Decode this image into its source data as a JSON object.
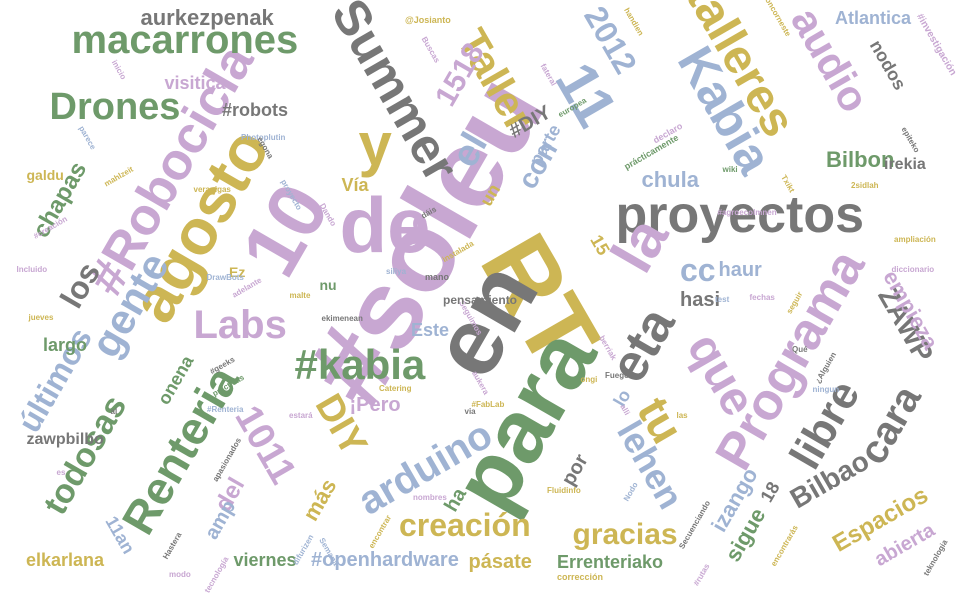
{
  "palette": {
    "green": "#6e9a6a",
    "blue": "#9fb3d3",
    "purple": "#c8a7d2",
    "gold": "#cdb654",
    "gray": "#777777"
  },
  "words": [
    {
      "text": "#soleu",
      "color": "purple"
    },
    {
      "text": "RT",
      "color": "gold"
    },
    {
      "text": "en",
      "color": "gray"
    },
    {
      "text": "para",
      "color": "green"
    },
    {
      "text": "10",
      "color": "purple"
    },
    {
      "text": "de",
      "color": "purple"
    },
    {
      "text": "agosto",
      "color": "gold"
    },
    {
      "text": "#Robocicla",
      "color": "purple"
    },
    {
      "text": "y",
      "color": "gold"
    },
    {
      "text": "Summer",
      "color": "gray"
    },
    {
      "text": "11",
      "color": "blue"
    },
    {
      "text": "Kabia",
      "color": "blue"
    },
    {
      "text": "talleres",
      "color": "gold"
    },
    {
      "text": "proyectos",
      "color": "gray"
    },
    {
      "text": "Programa",
      "color": "purple"
    },
    {
      "text": "la",
      "color": "purple"
    },
    {
      "text": "macarrones",
      "color": "green"
    },
    {
      "text": "Drones",
      "color": "green"
    },
    {
      "text": "gente",
      "color": "blue"
    },
    {
      "text": "Labs",
      "color": "purple"
    },
    {
      "text": "#kabia",
      "color": "green"
    },
    {
      "text": "eta",
      "color": "gray"
    },
    {
      "text": "que",
      "color": "purple"
    },
    {
      "text": "tu",
      "color": "gold"
    },
    {
      "text": "arduino",
      "color": "blue"
    },
    {
      "text": "Renteria",
      "color": "green"
    },
    {
      "text": "DIY",
      "color": "gold"
    },
    {
      "text": "1011",
      "color": "purple"
    },
    {
      "text": "libre",
      "color": "gray"
    },
    {
      "text": "cara",
      "color": "gray"
    },
    {
      "text": "lehen",
      "color": "blue"
    },
    {
      "text": "todosas",
      "color": "green"
    },
    {
      "text": "creación",
      "color": "gold"
    },
    {
      "text": "gracias",
      "color": "gold"
    },
    {
      "text": "Bilbao",
      "color": "gray"
    },
    {
      "text": "audio",
      "color": "purple"
    },
    {
      "text": "Taller",
      "color": "gold"
    },
    {
      "text": "2012",
      "color": "blue"
    },
    {
      "text": "1518",
      "color": "purple"
    },
    {
      "text": "el",
      "color": "blue"
    },
    {
      "text": "con",
      "color": "blue"
    },
    {
      "text": "los",
      "color": "gray"
    },
    {
      "text": "últimos",
      "color": "blue"
    },
    {
      "text": "cc",
      "color": "blue"
    },
    {
      "text": "aurkezpenak",
      "color": "gray"
    },
    {
      "text": "chapas",
      "color": "green"
    },
    {
      "text": "Bilbon",
      "color": "green"
    },
    {
      "text": "chula",
      "color": "blue"
    },
    {
      "text": "haur",
      "color": "blue"
    },
    {
      "text": "hasi",
      "color": "gray"
    },
    {
      "text": "ZAWP",
      "color": "gray"
    },
    {
      "text": "empieza",
      "color": "purple"
    },
    {
      "text": "Espacios",
      "color": "gold"
    },
    {
      "text": "abierta",
      "color": "purple"
    },
    {
      "text": "izango",
      "color": "blue"
    },
    {
      "text": "sigue",
      "color": "green"
    },
    {
      "text": "del",
      "color": "purple"
    },
    {
      "text": "amp",
      "color": "blue"
    },
    {
      "text": "más",
      "color": "gold"
    },
    {
      "text": "onena",
      "color": "green"
    },
    {
      "text": "¡Pero",
      "color": "purple"
    },
    {
      "text": "#openhardware",
      "color": "blue"
    },
    {
      "text": "pásate",
      "color": "gold"
    },
    {
      "text": "Errenteriako",
      "color": "green"
    },
    {
      "text": "viernes",
      "color": "green"
    },
    {
      "text": "elkarlana",
      "color": "gold"
    },
    {
      "text": "zawpbilbo",
      "color": "gray"
    },
    {
      "text": "11an",
      "color": "blue"
    },
    {
      "text": "por",
      "color": "gray"
    },
    {
      "text": "ha",
      "color": "green"
    },
    {
      "text": "18",
      "color": "gray"
    },
    {
      "text": "lo",
      "color": "blue"
    },
    {
      "text": "Este",
      "color": "blue"
    },
    {
      "text": "largo",
      "color": "green"
    },
    {
      "text": "Vía",
      "color": "gold"
    },
    {
      "text": "un",
      "color": "gold"
    },
    {
      "text": "parte",
      "color": "blue"
    },
    {
      "text": "#DIY",
      "color": "gray"
    },
    {
      "text": "#robots",
      "color": "gray"
    },
    {
      "text": "visitica",
      "color": "purple"
    },
    {
      "text": "galdu",
      "color": "gold"
    },
    {
      "text": "Atlantica",
      "color": "blue"
    },
    {
      "text": "nodos",
      "color": "gray"
    },
    {
      "text": "irekia",
      "color": "gray"
    },
    {
      "text": "e",
      "color": "purple"
    },
    {
      "text": "15",
      "color": "gold"
    },
    {
      "text": "Ez",
      "color": "gold"
    },
    {
      "text": "nu",
      "color": "green"
    },
    {
      "text": "#investigación",
      "color": "purple"
    },
    {
      "text": "handien",
      "color": "gold"
    },
    {
      "text": "Poncorneste",
      "color": "gold"
    },
    {
      "text": "@Josianto",
      "color": "gold"
    },
    {
      "text": "Buscas",
      "color": "purple"
    },
    {
      "text": "fateral",
      "color": "purple"
    },
    {
      "text": "europea",
      "color": "green"
    },
    {
      "text": "inicio",
      "color": "purple"
    },
    {
      "text": "Photoplutin",
      "color": "blue"
    },
    {
      "text": "egona",
      "color": "gray"
    },
    {
      "text": "declaro",
      "color": "purple"
    },
    {
      "text": "prácticamente",
      "color": "green"
    },
    {
      "text": "parece",
      "color": "blue"
    },
    {
      "text": "mahlzeit",
      "color": "gold"
    },
    {
      "text": "veranigas",
      "color": "gold"
    },
    {
      "text": "proyecto",
      "color": "blue"
    },
    {
      "text": "Dando",
      "color": "purple"
    },
    {
      "text": "dáis",
      "color": "gray"
    },
    {
      "text": "wiki",
      "color": "green"
    },
    {
      "text": "Txikt",
      "color": "gold"
    },
    {
      "text": "2sidlah",
      "color": "gold"
    },
    {
      "text": "epiteko",
      "color": "gray"
    },
    {
      "text": "#agroecolmnen",
      "color": "purple"
    },
    {
      "text": "ampliación",
      "color": "gold"
    },
    {
      "text": "diccionario",
      "color": "purple"
    },
    {
      "text": "#creación",
      "color": "purple"
    },
    {
      "text": "Incluido",
      "color": "purple"
    },
    {
      "text": "DrawBots",
      "color": "blue"
    },
    {
      "text": "adelante",
      "color": "purple"
    },
    {
      "text": "siliya",
      "color": "blue"
    },
    {
      "text": "mano",
      "color": "gray"
    },
    {
      "text": "instalada",
      "color": "gold"
    },
    {
      "text": "malte",
      "color": "gold"
    },
    {
      "text": "test",
      "color": "blue"
    },
    {
      "text": "fechas",
      "color": "purple"
    },
    {
      "text": "seguir",
      "color": "gold"
    },
    {
      "text": "jueves",
      "color": "gold"
    },
    {
      "text": "ekimenean",
      "color": "gray"
    },
    {
      "text": "Seguimos",
      "color": "purple"
    },
    {
      "text": "berriak",
      "color": "purple"
    },
    {
      "text": "Qué",
      "color": "gray"
    },
    {
      "text": "¿Alguien",
      "color": "gray"
    },
    {
      "text": "ningun",
      "color": "blue"
    },
    {
      "text": "#geeks",
      "color": "gray"
    },
    {
      "text": "prácticas",
      "color": "green"
    },
    {
      "text": "ongi",
      "color": "gold"
    },
    {
      "text": "Fuego",
      "color": "gray"
    },
    {
      "text": "aukera",
      "color": "purple"
    },
    {
      "text": "al",
      "color": "gray"
    },
    {
      "text": "#Renteria",
      "color": "blue"
    },
    {
      "text": "estará",
      "color": "purple"
    },
    {
      "text": "Catering",
      "color": "gold"
    },
    {
      "text": "via",
      "color": "gray"
    },
    {
      "text": "#FabLab",
      "color": "gold"
    },
    {
      "text": "alli",
      "color": "purple"
    },
    {
      "text": "las",
      "color": "gold"
    },
    {
      "text": "es",
      "color": "purple"
    },
    {
      "text": "apasionados",
      "color": "gray"
    },
    {
      "text": "nombres",
      "color": "purple"
    },
    {
      "text": "Fluidinfo",
      "color": "gold"
    },
    {
      "text": "Nodo",
      "color": "blue"
    },
    {
      "text": "Secuenciando",
      "color": "gray"
    },
    {
      "text": "encontrar",
      "color": "gold"
    },
    {
      "text": "Hastera",
      "color": "gray"
    },
    {
      "text": "difurizen",
      "color": "blue"
    },
    {
      "text": "Semana",
      "color": "blue"
    },
    {
      "text": "modo",
      "color": "purple"
    },
    {
      "text": "tecnología",
      "color": "purple"
    },
    {
      "text": "corrección",
      "color": "gold"
    },
    {
      "text": "#rutas",
      "color": "purple"
    },
    {
      "text": "encontrarás",
      "color": "gold"
    },
    {
      "text": "teknologia",
      "color": "gray"
    },
    {
      "text": "pensamiento",
      "color": "gray"
    }
  ]
}
